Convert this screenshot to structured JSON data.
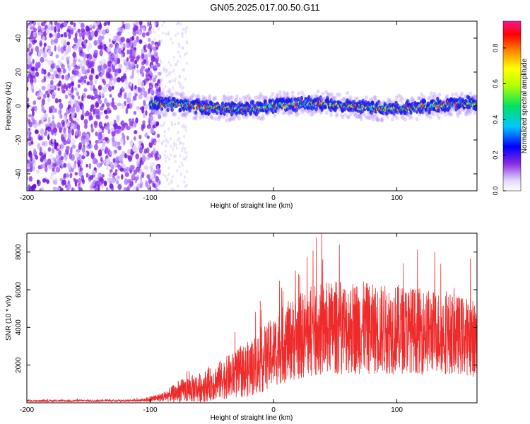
{
  "chart_data": [
    {
      "type": "heatmap",
      "title": "GN05.2025.017.00.50.G11",
      "xlabel": "Height of straight line (km)",
      "ylabel": "Frequency (Hz)",
      "xlim": [
        -200,
        165
      ],
      "ylim": [
        -50,
        50
      ],
      "xticks": [
        -200,
        -100,
        0,
        100
      ],
      "yticks": [
        -40,
        -20,
        0,
        20,
        40
      ],
      "colorbar": {
        "label": "Normalized spectral amplitude",
        "range": [
          0.0,
          0.95
        ],
        "ticks": [
          "0.0",
          "0.2",
          "0.4",
          "0.6",
          "0.8"
        ]
      },
      "regions": [
        {
          "name": "noise",
          "x": [
            -200,
            -100
          ],
          "description_values": {
            "freq_range": [
              -50,
              50
            ]
          }
        },
        {
          "name": "signal",
          "x": [
            -100,
            165
          ],
          "center_freq": 0,
          "half_width": 6
        }
      ]
    },
    {
      "type": "line",
      "xlabel": "Height of straight line (km)",
      "ylabel": "SNR (10 * v/v)",
      "xlim": [
        -200,
        165
      ],
      "ylim": [
        0,
        9000
      ],
      "xticks": [
        -200,
        -100,
        0,
        100
      ],
      "yticks": [
        2000,
        4000,
        6000,
        8000
      ],
      "series": [
        {
          "name": "SNR",
          "color": "#ee2a2a",
          "envelope": {
            "x": [
              -200,
              -110,
              -100,
              -90,
              -80,
              -70,
              -60,
              -50,
              -40,
              -30,
              -20,
              -10,
              0,
              10,
              20,
              30,
              40,
              50,
              60,
              70,
              80,
              90,
              100,
              110,
              120,
              130,
              140,
              150,
              160,
              165
            ],
            "base": [
              100,
              120,
              200,
              300,
              500,
              700,
              800,
              1000,
              1300,
              1500,
              1800,
              2200,
              2700,
              3200,
              3500,
              3700,
              3900,
              4000,
              4000,
              4000,
              3900,
              3900,
              3900,
              3900,
              3800,
              3800,
              3700,
              3600,
              3500,
              3300
            ],
            "spread": [
              50,
              60,
              150,
              250,
              500,
              700,
              800,
              900,
              1100,
              1300,
              1500,
              1700,
              1900,
              2100,
              2300,
              2400,
              2500,
              2500,
              2500,
              2500,
              2400,
              2400,
              2400,
              2300,
              2300,
              2200,
              2200,
              2100,
              2100,
              2000
            ]
          },
          "peak_max": 9000
        }
      ]
    }
  ]
}
